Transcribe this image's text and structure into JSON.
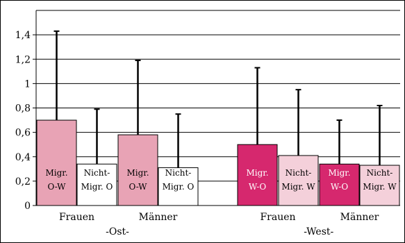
{
  "chart_data": {
    "type": "bar",
    "title": "",
    "xlabel": "",
    "ylabel": "",
    "ylim": [
      0,
      1.6
    ],
    "yticks": [
      "0",
      "0,2",
      "0,4",
      "0,6",
      "0,8",
      "1",
      "1,2",
      "1,4"
    ],
    "grid": "horizontal",
    "legend": "none",
    "error_bars": true,
    "groups": [
      {
        "label": "Frauen",
        "region": "-Ost-"
      },
      {
        "label": "Männer",
        "region": "-Ost-"
      },
      {
        "label": "Frauen",
        "region": "-West-"
      },
      {
        "label": "Männer",
        "region": "-West-"
      }
    ],
    "region_labels": [
      "-Ost-",
      "-West-"
    ],
    "bars": [
      {
        "label_line1": "Migr.",
        "label_line2": "O-W",
        "value": 0.7,
        "error_upper": 1.43,
        "fill": "#e8a3b5",
        "text_color": "#000000"
      },
      {
        "label_line1": "Nicht-",
        "label_line2": "Migr. O",
        "value": 0.34,
        "error_upper": 0.79,
        "fill": "#ffffff",
        "text_color": "#000000"
      },
      {
        "label_line1": "Migr.",
        "label_line2": "O-W",
        "value": 0.58,
        "error_upper": 1.19,
        "fill": "#e8a3b5",
        "text_color": "#000000"
      },
      {
        "label_line1": "Nicht-",
        "label_line2": "Migr. O",
        "value": 0.31,
        "error_upper": 0.75,
        "fill": "#ffffff",
        "text_color": "#000000"
      },
      {
        "label_line1": "Migr.",
        "label_line2": "W-O",
        "value": 0.5,
        "error_upper": 1.13,
        "fill": "#d6286e",
        "text_color": "#ffffff"
      },
      {
        "label_line1": "Nicht-",
        "label_line2": "Migr. W",
        "value": 0.41,
        "error_upper": 0.95,
        "fill": "#f4d0da",
        "text_color": "#000000"
      },
      {
        "label_line1": "Migr.",
        "label_line2": "W-O",
        "value": 0.34,
        "error_upper": 0.7,
        "fill": "#d6286e",
        "text_color": "#ffffff"
      },
      {
        "label_line1": "Nicht-",
        "label_line2": "Migr. W",
        "value": 0.33,
        "error_upper": 0.82,
        "fill": "#f4d0da",
        "text_color": "#000000"
      }
    ]
  }
}
